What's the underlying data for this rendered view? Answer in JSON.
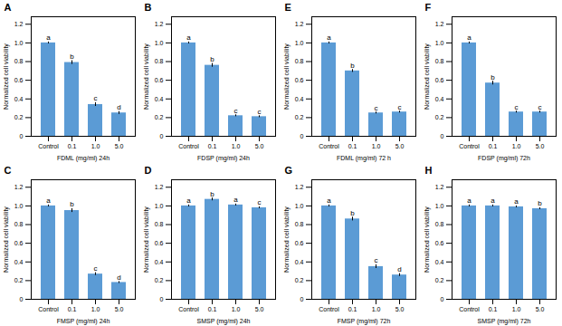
{
  "chart_data": [
    {
      "type": "bar",
      "title": "A",
      "xlabel": "FDML (mg/ml) 24h",
      "ylabel": "Normalized cell viability",
      "categories": [
        "Control",
        "0.1",
        "1.0",
        "5.0"
      ],
      "values": [
        1.0,
        0.79,
        0.34,
        0.25
      ],
      "errors": [
        0.01,
        0.02,
        0.02,
        0.015
      ],
      "annotations": [
        "a",
        "b",
        "c",
        "d"
      ],
      "color": "#5B9BD5",
      "ylim": [
        0,
        1.28
      ],
      "yticks": [
        0,
        0.2,
        0.4,
        0.6,
        0.8,
        {
          "value": 1.0,
          "label": "1.0"
        },
        1.2
      ],
      "grid": false
    },
    {
      "type": "bar",
      "title": "B",
      "xlabel": "FDSP (mg/ml) 24h",
      "ylabel": "Normalized cell viability",
      "categories": [
        "Control",
        "0.1",
        "1.0",
        "5.0"
      ],
      "values": [
        1.0,
        0.76,
        0.22,
        0.21
      ],
      "errors": [
        0.01,
        0.02,
        0.01,
        0.01
      ],
      "annotations": [
        "a",
        "b",
        "c",
        "c"
      ],
      "color": "#5B9BD5",
      "ylim": [
        0,
        1.28
      ],
      "yticks": [
        0,
        0.2,
        0.4,
        0.6,
        0.8,
        {
          "value": 1.0,
          "label": "1.0"
        },
        1.2
      ],
      "grid": false
    },
    {
      "type": "bar",
      "title": "E",
      "xlabel": "FDML (mg/ml) 72 h",
      "ylabel": "Normalized cell viability",
      "categories": [
        "Control",
        "0.1",
        "1.0",
        "5.0"
      ],
      "values": [
        1.0,
        0.7,
        0.25,
        0.26
      ],
      "errors": [
        0.01,
        0.015,
        0.01,
        0.01
      ],
      "annotations": [
        "a",
        "b",
        "c",
        "c"
      ],
      "color": "#5B9BD5",
      "ylim": [
        0,
        1.28
      ],
      "yticks": [
        0,
        0.2,
        0.4,
        0.6,
        0.8,
        {
          "value": 1.0,
          "label": "1.0"
        },
        1.2
      ],
      "grid": false
    },
    {
      "type": "bar",
      "title": "F",
      "xlabel": "FDSP (mg/ml) 72h",
      "ylabel": "Normalized cell viability",
      "categories": [
        "Control",
        "0.1",
        "1.0",
        "5.0"
      ],
      "values": [
        1.0,
        0.57,
        0.26,
        0.26
      ],
      "errors": [
        0.01,
        0.02,
        0.01,
        0.01
      ],
      "annotations": [
        "a",
        "b",
        "c",
        "c"
      ],
      "color": "#5B9BD5",
      "ylim": [
        0,
        1.28
      ],
      "yticks": [
        0,
        0.2,
        0.4,
        0.6,
        0.8,
        {
          "value": 1.0,
          "label": "1.0"
        },
        1.2
      ],
      "grid": false
    },
    {
      "type": "bar",
      "title": "C",
      "xlabel": "FMSP (mg/ml) 24h",
      "ylabel": "Normalized cell viability",
      "categories": [
        "Control",
        "0.1",
        "1.0",
        "5.0"
      ],
      "values": [
        1.0,
        0.95,
        0.27,
        0.18
      ],
      "errors": [
        0.01,
        0.02,
        0.015,
        0.01
      ],
      "annotations": [
        "a",
        "b",
        "c",
        "d"
      ],
      "color": "#5B9BD5",
      "ylim": [
        0,
        1.28
      ],
      "yticks": [
        0,
        0.2,
        0.4,
        0.6,
        0.8,
        {
          "value": 1.0,
          "label": "1.0"
        },
        1.2
      ],
      "grid": false
    },
    {
      "type": "bar",
      "title": "D",
      "xlabel": "SMSP (mg/ml) 24h",
      "ylabel": "Normalized cell viability",
      "categories": [
        "Control",
        "0.1",
        "1.0",
        "5.0"
      ],
      "values": [
        1.0,
        1.07,
        1.01,
        0.98
      ],
      "errors": [
        0.01,
        0.015,
        0.01,
        0.01
      ],
      "annotations": [
        "a",
        "b",
        "a",
        "c"
      ],
      "color": "#5B9BD5",
      "ylim": [
        0,
        1.28
      ],
      "yticks": [
        0,
        0.2,
        0.4,
        0.6,
        0.8,
        {
          "value": 1.0,
          "label": "1.0"
        },
        1.2
      ],
      "grid": false
    },
    {
      "type": "bar",
      "title": "G",
      "xlabel": "FMSP (mg/ml) 72h",
      "ylabel": "Normalized cell viability",
      "categories": [
        "Control",
        "0.1",
        "1.0",
        "5.0"
      ],
      "values": [
        1.0,
        0.86,
        0.35,
        0.26
      ],
      "errors": [
        0.01,
        0.02,
        0.02,
        0.015
      ],
      "annotations": [
        "a",
        "b",
        "c",
        "d"
      ],
      "color": "#5B9BD5",
      "ylim": [
        0,
        1.28
      ],
      "yticks": [
        0,
        0.2,
        0.4,
        0.6,
        0.8,
        {
          "value": 1.0,
          "label": "1.0"
        },
        1.2
      ],
      "grid": false
    },
    {
      "type": "bar",
      "title": "H",
      "xlabel": "SMSP (mg/ml) 72h",
      "ylabel": "Normalized cell viability",
      "categories": [
        "Control",
        "0.1",
        "1.0",
        "5.0"
      ],
      "values": [
        1.0,
        1.0,
        0.99,
        0.97
      ],
      "errors": [
        0.01,
        0.01,
        0.01,
        0.01
      ],
      "annotations": [
        "a",
        "a",
        "a",
        "b"
      ],
      "color": "#5B9BD5",
      "ylim": [
        0,
        1.28
      ],
      "yticks": [
        0,
        0.2,
        0.4,
        0.6,
        0.8,
        {
          "value": 1.0,
          "label": "1.0"
        },
        1.2
      ],
      "grid": false
    }
  ]
}
